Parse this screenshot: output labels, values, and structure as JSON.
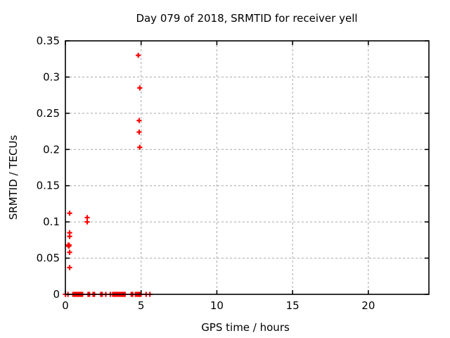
{
  "chart_data": {
    "type": "scatter",
    "title": "Day 079 of 2018, SRMTID for receiver yell",
    "xlabel": "GPS time / hours",
    "ylabel": "SRMTID / TECUs",
    "xlim": [
      0,
      24
    ],
    "ylim": [
      0,
      0.35
    ],
    "xticks": [
      0,
      5,
      10,
      15,
      20
    ],
    "xtick_labels": [
      "0",
      "5",
      "10",
      "15",
      "20"
    ],
    "yticks": [
      0,
      0.05,
      0.1,
      0.15,
      0.2,
      0.25,
      0.3,
      0.35
    ],
    "ytick_labels": [
      "0",
      "0.05",
      "0.1",
      "0.15",
      "0.2",
      "0.25",
      "0.3",
      "0.35"
    ],
    "grid": true,
    "legend": "none",
    "marker": "plus",
    "marker_color": "#ff0000",
    "colors": {
      "grid": "#a6a6a6",
      "axis": "#000000",
      "background": "#ffffff"
    },
    "points": [
      {
        "x": 0.28,
        "y": 0.112
      },
      {
        "x": 0.28,
        "y": 0.085
      },
      {
        "x": 0.28,
        "y": 0.08
      },
      {
        "x": 0.18,
        "y": 0.068
      },
      {
        "x": 0.25,
        "y": 0.068
      },
      {
        "x": 0.22,
        "y": 0.0665
      },
      {
        "x": 0.28,
        "y": 0.058
      },
      {
        "x": 0.28,
        "y": 0.037
      },
      {
        "x": 1.44,
        "y": 0.106
      },
      {
        "x": 1.44,
        "y": 0.1
      },
      {
        "x": 4.81,
        "y": 0.33
      },
      {
        "x": 4.91,
        "y": 0.285
      },
      {
        "x": 4.87,
        "y": 0.24
      },
      {
        "x": 4.87,
        "y": 0.224
      },
      {
        "x": 4.91,
        "y": 0.203
      }
    ],
    "zero_band_segments": [
      [
        0.0,
        0.0
      ],
      [
        0.17,
        0.21
      ],
      [
        0.5,
        1.14
      ],
      [
        1.5,
        1.63
      ],
      [
        1.83,
        1.96
      ],
      [
        2.34,
        2.43
      ],
      [
        2.67,
        2.75
      ],
      [
        2.97,
        3.01
      ],
      [
        3.13,
        4.01
      ],
      [
        4.35,
        4.44
      ],
      [
        4.63,
        5.04
      ],
      [
        5.33,
        5.37
      ],
      [
        5.58,
        5.62
      ]
    ],
    "zero_band_value": 0,
    "zero_band_step": 0.09
  }
}
